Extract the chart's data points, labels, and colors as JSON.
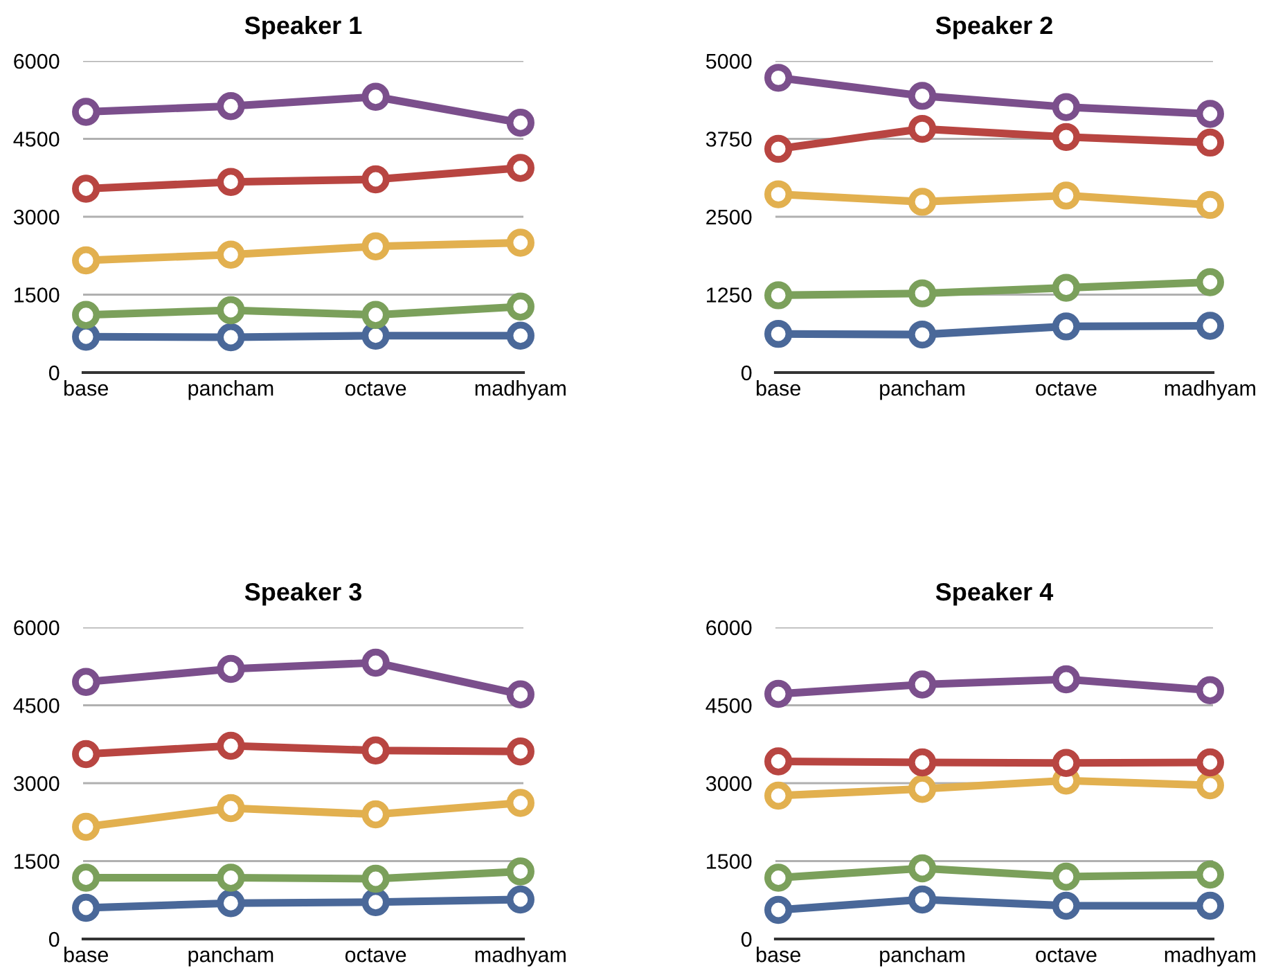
{
  "chart_data": [
    {
      "type": "line",
      "title": "Speaker 1",
      "categories": [
        "base",
        "pancham",
        "octave",
        "madhyam"
      ],
      "ylim": [
        0,
        6000
      ],
      "yticks": [
        0,
        1500,
        3000,
        4500,
        6000
      ],
      "grid": "y",
      "marker": "circle",
      "line_style": "solid",
      "series": [
        {
          "color": "#4a6899",
          "values": [
            690,
            680,
            710,
            710
          ]
        },
        {
          "color": "#7ba05b",
          "values": [
            1110,
            1200,
            1110,
            1270
          ]
        },
        {
          "color": "#e2b04f",
          "values": [
            2160,
            2270,
            2430,
            2500
          ]
        },
        {
          "color": "#b84541",
          "values": [
            3540,
            3670,
            3720,
            3940
          ]
        },
        {
          "color": "#7b4f8c",
          "values": [
            5020,
            5130,
            5310,
            4810
          ]
        }
      ]
    },
    {
      "type": "line",
      "title": "Speaker 2",
      "categories": [
        "base",
        "pancham",
        "octave",
        "madhyam"
      ],
      "ylim": [
        0,
        5000
      ],
      "yticks": [
        0,
        1250,
        2500,
        3750,
        5000
      ],
      "grid": "y",
      "marker": "circle",
      "line_style": "solid",
      "series": [
        {
          "color": "#4a6899",
          "values": [
            620,
            610,
            740,
            750
          ]
        },
        {
          "color": "#7ba05b",
          "values": [
            1240,
            1270,
            1360,
            1450
          ]
        },
        {
          "color": "#e2b04f",
          "values": [
            2860,
            2740,
            2840,
            2690
          ]
        },
        {
          "color": "#b84541",
          "values": [
            3590,
            3910,
            3780,
            3690
          ]
        },
        {
          "color": "#7b4f8c",
          "values": [
            4730,
            4440,
            4260,
            4150
          ]
        }
      ]
    },
    {
      "type": "line",
      "title": "Speaker 3",
      "categories": [
        "base",
        "pancham",
        "octave",
        "madhyam"
      ],
      "ylim": [
        0,
        6000
      ],
      "yticks": [
        0,
        1500,
        3000,
        4500,
        6000
      ],
      "grid": "y",
      "marker": "circle",
      "line_style": "solid",
      "series": [
        {
          "color": "#4a6899",
          "values": [
            600,
            690,
            710,
            760
          ]
        },
        {
          "color": "#7ba05b",
          "values": [
            1180,
            1180,
            1160,
            1300
          ]
        },
        {
          "color": "#e2b04f",
          "values": [
            2160,
            2520,
            2400,
            2620
          ]
        },
        {
          "color": "#b84541",
          "values": [
            3560,
            3720,
            3630,
            3610
          ]
        },
        {
          "color": "#7b4f8c",
          "values": [
            4950,
            5200,
            5320,
            4710
          ]
        }
      ]
    },
    {
      "type": "line",
      "title": "Speaker 4",
      "categories": [
        "base",
        "pancham",
        "octave",
        "madhyam"
      ],
      "ylim": [
        0,
        6000
      ],
      "yticks": [
        0,
        1500,
        3000,
        4500,
        6000
      ],
      "grid": "y",
      "marker": "circle",
      "line_style": "solid",
      "series": [
        {
          "color": "#4a6899",
          "values": [
            560,
            760,
            640,
            640
          ]
        },
        {
          "color": "#7ba05b",
          "values": [
            1180,
            1360,
            1200,
            1240
          ]
        },
        {
          "color": "#e2b04f",
          "values": [
            2760,
            2890,
            3050,
            2960
          ]
        },
        {
          "color": "#b84541",
          "values": [
            3420,
            3400,
            3390,
            3400
          ]
        },
        {
          "color": "#7b4f8c",
          "values": [
            4720,
            4900,
            5000,
            4790
          ]
        }
      ]
    }
  ]
}
